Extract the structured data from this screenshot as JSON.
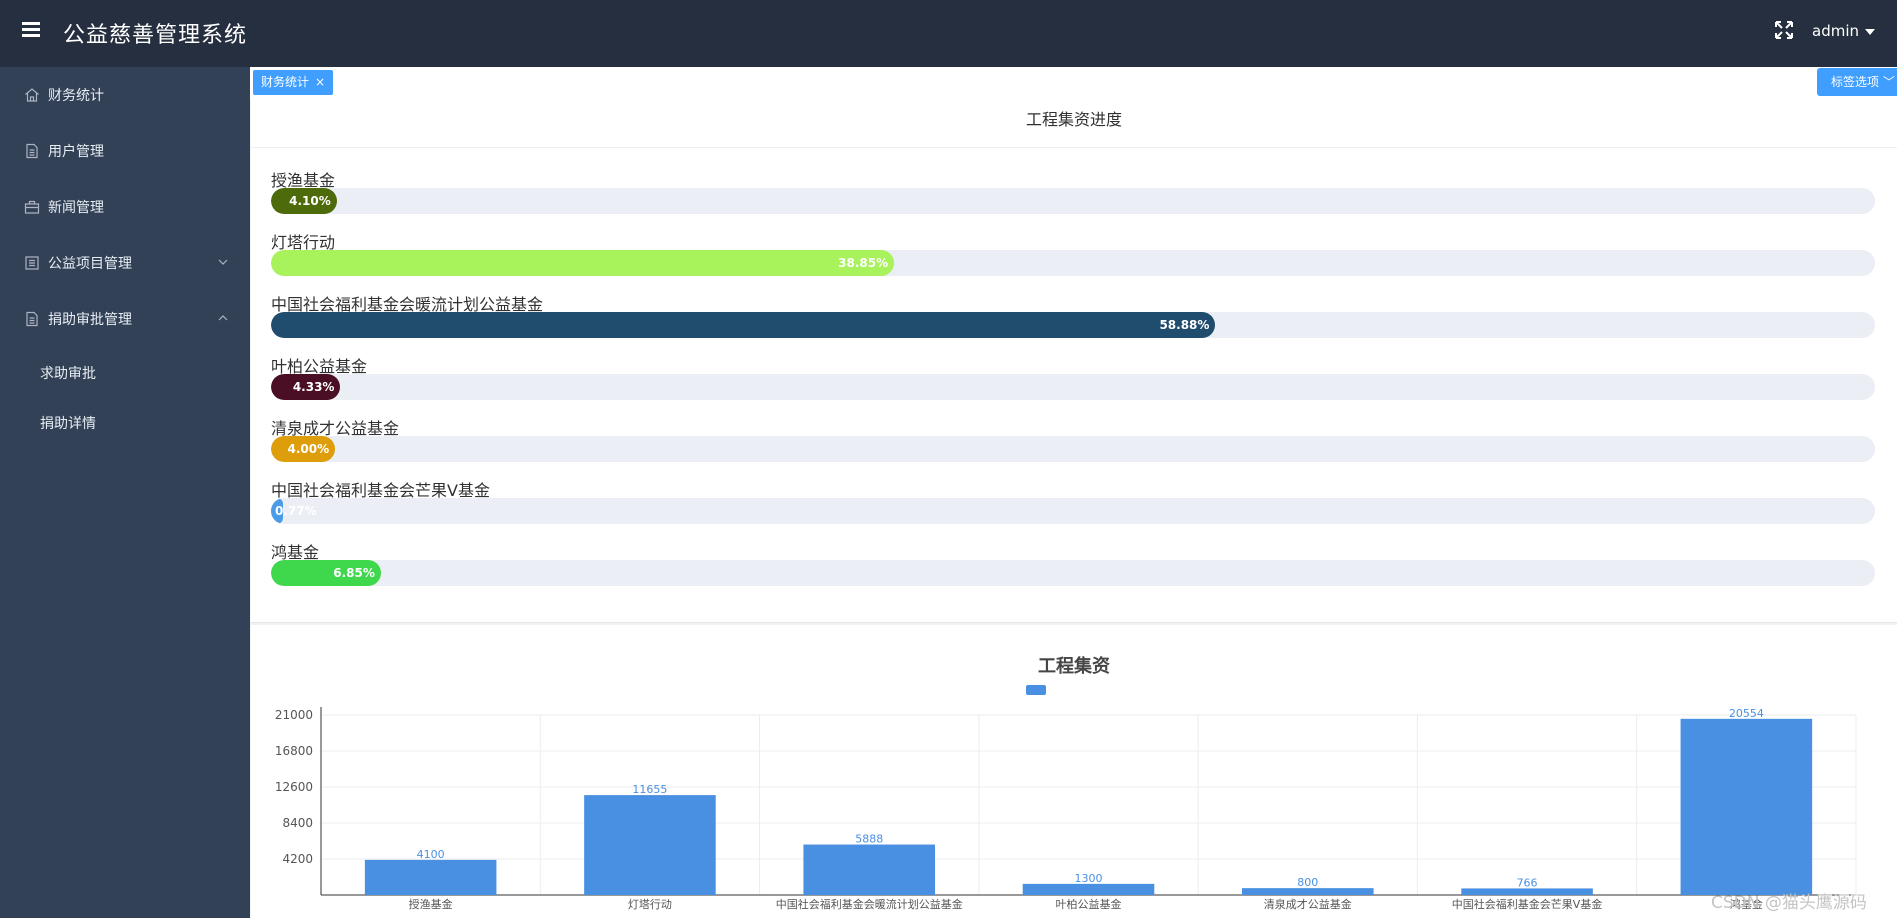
{
  "header": {
    "title": "公益慈善管理系统",
    "user": "admin"
  },
  "sidebar": {
    "items": [
      {
        "label": "财务统计",
        "icon": "home-icon"
      },
      {
        "label": "用户管理",
        "icon": "document-icon"
      },
      {
        "label": "新闻管理",
        "icon": "briefcase-icon"
      },
      {
        "label": "公益项目管理",
        "icon": "list-icon",
        "arrow": "chevron-down-icon"
      },
      {
        "label": "捐助审批管理",
        "icon": "document-icon",
        "arrow": "chevron-up-icon"
      }
    ],
    "subitems": [
      {
        "label": "求助审批"
      },
      {
        "label": "捐助详情"
      }
    ]
  },
  "tabs": {
    "active": "财务统计",
    "close": "×",
    "options": "标签选项"
  },
  "progress_card": {
    "title": "工程集资进度",
    "items": [
      {
        "name": "授渔基金",
        "percent": 4.1,
        "text": "4.10%",
        "color": "#4e6b0c"
      },
      {
        "name": "灯塔行动",
        "percent": 38.85,
        "text": "38.85%",
        "color": "#a8f25c"
      },
      {
        "name": "中国社会福利基金会暖流计划公益基金",
        "percent": 58.88,
        "text": "58.88%",
        "color": "#204d6e"
      },
      {
        "name": "叶柏公益基金",
        "percent": 4.33,
        "text": "4.33%",
        "color": "#4a0f24"
      },
      {
        "name": "清泉成才公益基金",
        "percent": 4.0,
        "text": "4.00%",
        "color": "#de9e0b"
      },
      {
        "name": "中国社会福利基金会芒果V基金",
        "percent": 0.77,
        "text": "0.77%",
        "color": "#4a9be8"
      },
      {
        "name": "鸿基金",
        "percent": 6.85,
        "text": "6.85%",
        "color": "#3fd84d"
      }
    ]
  },
  "chart_data": {
    "type": "bar",
    "title": "工程集资",
    "categories": [
      "授渔基金",
      "灯塔行动",
      "中国社会福利基金会暖流计划公益基金",
      "叶柏公益基金",
      "清泉成才公益基金",
      "中国社会福利基金会芒果V基金",
      "鸿基金"
    ],
    "category_labels_shown": [
      "授渔基金",
      "灯塔行动",
      "中国社会福利基金会暖流计划公益基金",
      "叶柏公益基金",
      "清泉成才公益基金",
      "中国社会福利基金会芒果V基金",
      "鸿基金"
    ],
    "values": [
      4100,
      11655,
      5888,
      1300,
      800,
      766,
      20554
    ],
    "yticks": [
      4200,
      8400,
      12600,
      16800,
      21000
    ],
    "ylim": [
      0,
      21000
    ],
    "grid": true,
    "color": "#4a90e2",
    "legend": "top-center"
  },
  "watermark": "CSDN @猫头鹰源码"
}
